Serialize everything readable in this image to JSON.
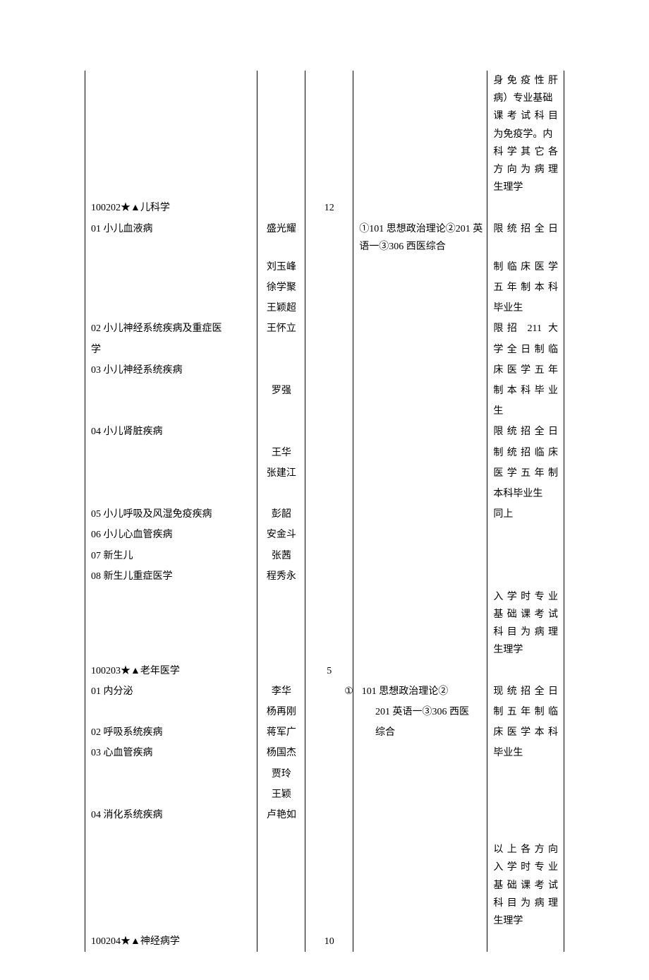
{
  "top_note": {
    "line1": "身免疫性肝",
    "line2": "病）专业基础",
    "line3": "课考试科目",
    "line4": "为免疫学。内",
    "line5": "科学其它各",
    "line6": "方向为病理",
    "line7": "生理学"
  },
  "section1": {
    "code": "100202★▲儿科学",
    "count": "12",
    "dir01": {
      "label": "01 小儿血液病",
      "supervisors": [
        "盛光耀",
        "刘玉峰",
        "徐学聚",
        "王颖超"
      ],
      "exam": "①101 思想政治理论②201 英语一③306 西医综合",
      "note_l1": "限统招全日",
      "note_l2": "制临床医学",
      "note_l3": "五年制本科",
      "note_l4": "毕业生"
    },
    "dir02": {
      "label_l1": "02 小儿神经系统疾病及重症医",
      "label_l2": "学",
      "supervisor": "王怀立",
      "note_l1": "限招 211 大",
      "note_l2": "学全日制临"
    },
    "dir03": {
      "label": "03 小儿神经系统疾病",
      "supervisor": "罗强",
      "note_l1": "床医学五年",
      "note_l2": "制本科毕业",
      "note_l3": "生"
    },
    "dir04": {
      "label": "04 小儿肾脏疾病",
      "supervisors": [
        "王华",
        "张建江"
      ],
      "note_l1": "限统招全日",
      "note_l2": "制统招临床",
      "note_l3": "医学五年制",
      "note_l4": "本科毕业生"
    },
    "dir05": {
      "label": "05 小儿呼吸及风湿免疫疾病",
      "supervisor": "彭韶",
      "note": "同上"
    },
    "dir06": {
      "label": "06 小儿心血管疾病",
      "supervisor": "安金斗"
    },
    "dir07": {
      "label": "07 新生儿",
      "supervisor": "张茜"
    },
    "dir08": {
      "label": "08 新生儿重症医学",
      "supervisor": "程秀永"
    },
    "bottom_note": {
      "l1": "入学时专业",
      "l2": "基础课考试",
      "l3": "科目为病理",
      "l4": "生理学"
    }
  },
  "section2": {
    "code": "100203★▲老年医学",
    "count": "5",
    "dir01": {
      "label": "01 内分泌",
      "supervisors": [
        "李华",
        "杨再刚"
      ],
      "exam_l1": "101 思想政治理论②",
      "exam_l2": "201 英语一③306 西医",
      "exam_l3": "综合",
      "note_l1": "现统招全日",
      "note_l2": "制五年制临",
      "note_l3": "床医学本科"
    },
    "dir02": {
      "label": "02 呼吸系统疾病",
      "supervisor": "蒋军广"
    },
    "dir03": {
      "label": "03 心血管疾病",
      "supervisors": [
        "杨国杰",
        "贾玲",
        "王颖"
      ],
      "note": "毕业生"
    },
    "dir04": {
      "label": "04 消化系统疾病",
      "supervisor": "卢艳如"
    },
    "bottom_note": {
      "l1": "以上各方向",
      "l2": "入学时专业",
      "l3": "基础课考试",
      "l4": "科目为病理",
      "l5": "生理学"
    }
  },
  "section3": {
    "code": "100204★▲神经病学",
    "count": "10"
  },
  "circled_one": "①"
}
